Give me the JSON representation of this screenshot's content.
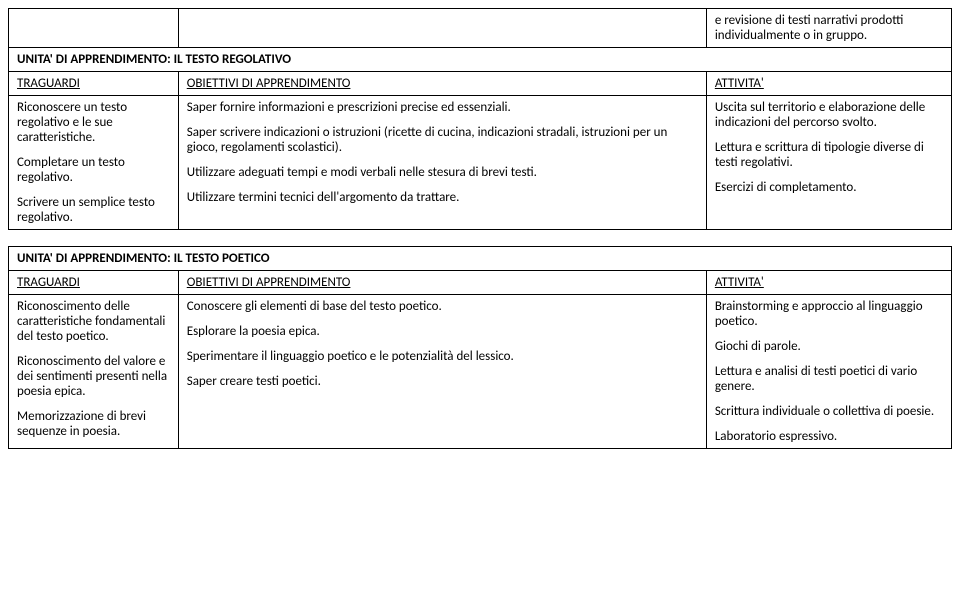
{
  "top_row": {
    "activity": "e revisione di testi narrativi prodotti individualmente o in gruppo."
  },
  "unit1": {
    "title": "UNITA' DI APPRENDIMENTO: IL TESTO REGOLATIVO",
    "headers": {
      "traguardi": "TRAGUARDI",
      "obiettivi": "OBIETTIVI DI APPRENDIMENTO",
      "attivita": "ATTIVITA'"
    },
    "traguardi": {
      "p1": "Riconoscere un testo regolativo e le sue caratteristiche.",
      "p2": "Completare un testo regolativo.",
      "p3": "Scrivere un semplice testo regolativo."
    },
    "obiettivi": {
      "p1": "Saper fornire informazioni e prescrizioni precise ed essenziali.",
      "p2": "Saper scrivere indicazioni o istruzioni (ricette di cucina, indicazioni stradali, istruzioni per un gioco, regolamenti scolastici).",
      "p3": "Utilizzare adeguati tempi e modi verbali nelle stesura di brevi testi.",
      "p4": "Utilizzare termini tecnici dell'argomento da trattare."
    },
    "attivita": {
      "p1": "Uscita sul territorio e elaborazione delle indicazioni del percorso svolto.",
      "p2": "Lettura e scrittura di tipologie diverse di testi regolativi.",
      "p3": "Esercizi di completamento."
    }
  },
  "unit2": {
    "title": "UNITA' DI APPRENDIMENTO: IL TESTO POETICO",
    "headers": {
      "traguardi": "TRAGUARDI",
      "obiettivi": "OBIETTIVI DI APPRENDIMENTO",
      "attivita": "ATTIVITA'"
    },
    "traguardi": {
      "p1": "Riconoscimento  delle caratteristiche fondamentali del testo poetico.",
      "p2": "Riconoscimento del valore e dei sentimenti presenti nella poesia epica.",
      "p3": "Memorizzazione di brevi sequenze in poesia."
    },
    "obiettivi": {
      "p1": "Conoscere gli elementi di base del testo poetico.",
      "p2": "Esplorare la poesia epica.",
      "p3": "Sperimentare il linguaggio poetico e le potenzialità del lessico.",
      "p4": "Saper creare testi poetici."
    },
    "attivita": {
      "p1": "Brainstorming e approccio al linguaggio poetico.",
      "p2": "Giochi di parole.",
      "p3": "Lettura  e analisi di testi poetici di vario genere.",
      "p4": "Scrittura individuale o collettiva di poesie.",
      "p5": "Laboratorio espressivo."
    }
  }
}
